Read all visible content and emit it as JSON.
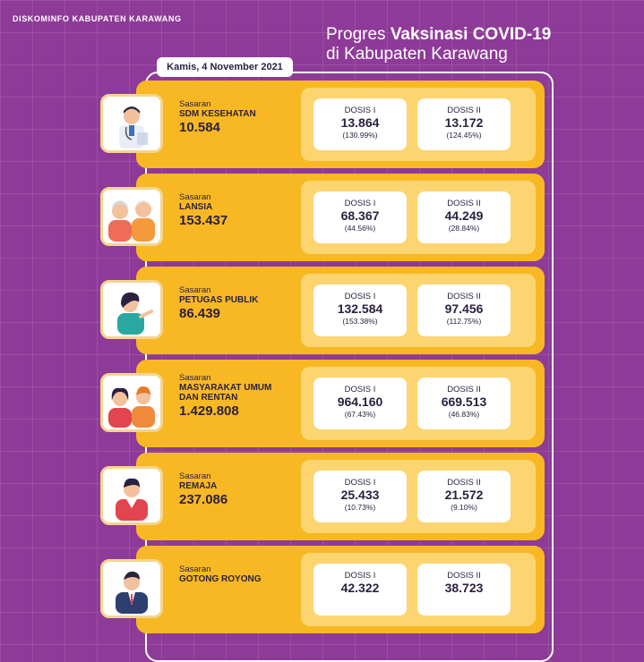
{
  "header": {
    "org": "DISKOMINFO KABUPATEN KARAWANG",
    "title_prefix": "Progres ",
    "title_bold": "Vaksinasi COVID-19",
    "title_line2": "di Kabupaten Karawang",
    "date": "Kamis, 4  November 2021"
  },
  "colors": {
    "background": "#8e3a98",
    "band": "#f8b824",
    "panel": "#fcd570"
  },
  "rows": [
    {
      "icon": "doctor-icon",
      "label": "Sasaran",
      "category": "SDM KESEHATAN",
      "target": "10.584",
      "dose1_label": "DOSIS I",
      "dose1_value": "13.864",
      "dose1_pct": "(130.99%)",
      "dose2_label": "DOSIS II",
      "dose2_value": "13.172",
      "dose2_pct": "(124.45%)"
    },
    {
      "icon": "elderly-couple-icon",
      "label": "Sasaran",
      "category": "LANSIA",
      "target": "153.437",
      "dose1_label": "DOSIS I",
      "dose1_value": "68.367",
      "dose1_pct": "(44.56%)",
      "dose2_label": "DOSIS II",
      "dose2_value": "44.249",
      "dose2_pct": "(28.84%)"
    },
    {
      "icon": "public-officer-icon",
      "label": "Sasaran",
      "category": "PETUGAS PUBLIK",
      "target": "86.439",
      "dose1_label": "DOSIS I",
      "dose1_value": "132.584",
      "dose1_pct": "(153.38%)",
      "dose2_label": "DOSIS II",
      "dose2_value": "97.456",
      "dose2_pct": "(112.75%)"
    },
    {
      "icon": "general-public-icon",
      "label": "Sasaran",
      "category": "MASYARAKAT UMUM",
      "category2": "DAN RENTAN",
      "target": "1.429.808",
      "dose1_label": "DOSIS I",
      "dose1_value": "964.160",
      "dose1_pct": "(67.43%)",
      "dose2_label": "DOSIS II",
      "dose2_value": "669.513",
      "dose2_pct": "(46.83%)"
    },
    {
      "icon": "teenager-icon",
      "label": "Sasaran",
      "category": "REMAJA",
      "target": "237.086",
      "dose1_label": "DOSIS I",
      "dose1_value": "25.433",
      "dose1_pct": "(10.73%)",
      "dose2_label": "DOSIS II",
      "dose2_value": "21.572",
      "dose2_pct": "(9.10%)"
    },
    {
      "icon": "businessman-icon",
      "label": "Sasaran",
      "category": "GOTONG ROYONG",
      "target": "",
      "dose1_label": "DOSIS I",
      "dose1_value": "42.322",
      "dose1_pct": "",
      "dose2_label": "DOSIS II",
      "dose2_value": "38.723",
      "dose2_pct": ""
    }
  ]
}
